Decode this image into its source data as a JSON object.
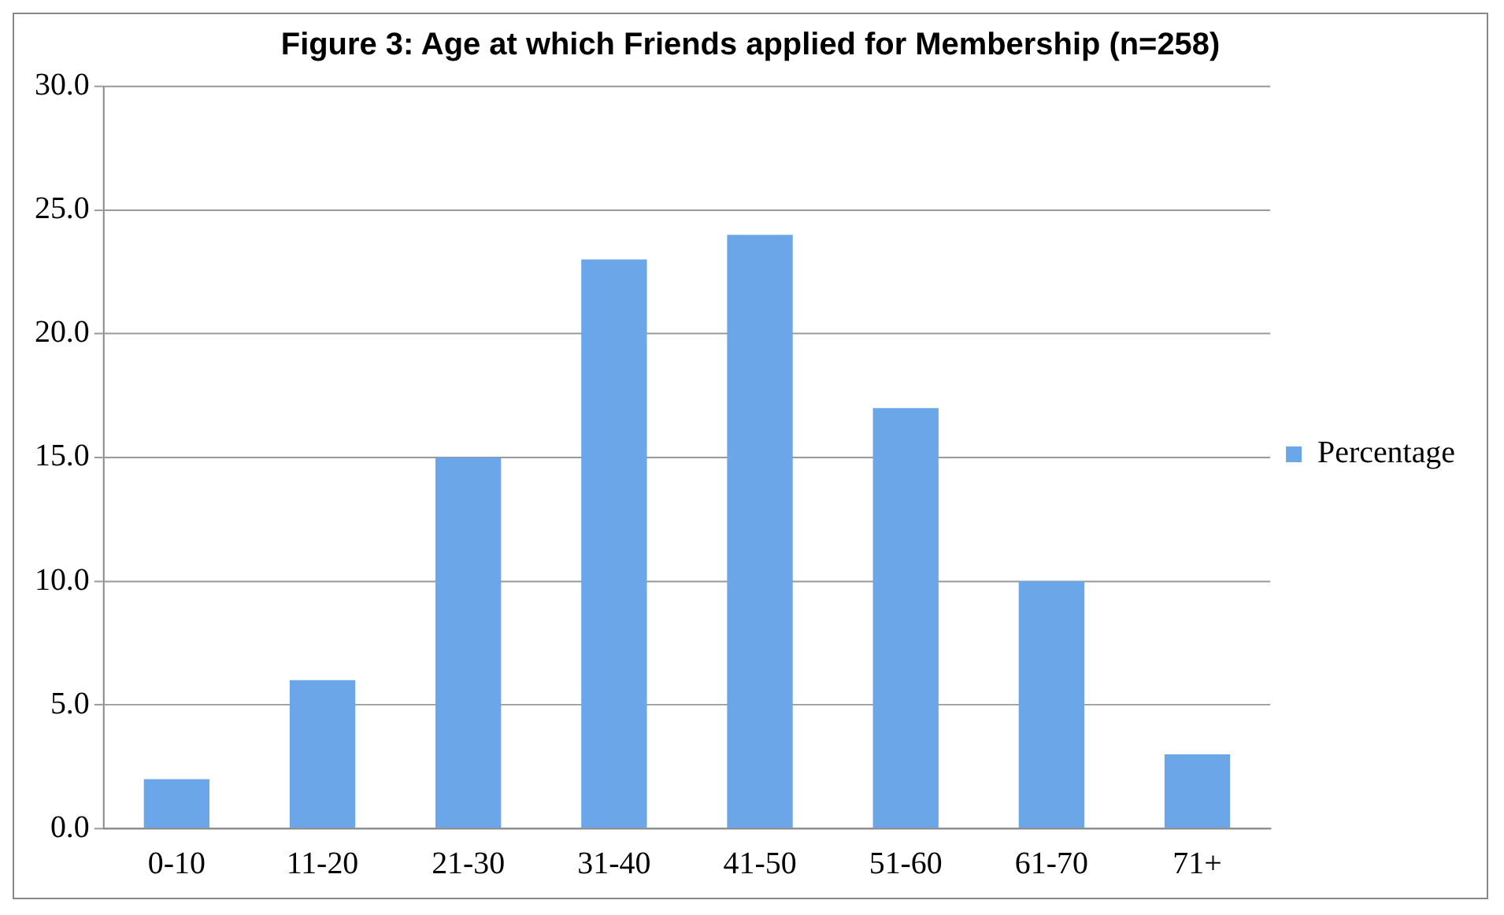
{
  "chart_data": {
    "type": "bar",
    "title": "Figure 3: Age at which Friends applied for Membership (n=258)",
    "categories": [
      "0-10",
      "11-20",
      "21-30",
      "31-40",
      "41-50",
      "51-60",
      "61-70",
      "71+"
    ],
    "series": [
      {
        "name": "Percentage",
        "color": "#6aa6e8",
        "values": [
          2,
          6,
          15,
          23,
          24,
          17,
          10,
          3
        ]
      }
    ],
    "ylim": [
      0,
      30
    ],
    "yticks": [
      {
        "value": 0,
        "label": "0.0"
      },
      {
        "value": 5,
        "label": "5.0"
      },
      {
        "value": 10,
        "label": "10.0"
      },
      {
        "value": 15,
        "label": "15.0"
      },
      {
        "value": 20,
        "label": "20.0"
      },
      {
        "value": 25,
        "label": "25.0"
      },
      {
        "value": 30,
        "label": "30.0"
      }
    ],
    "grid": "y",
    "legend": "right"
  }
}
